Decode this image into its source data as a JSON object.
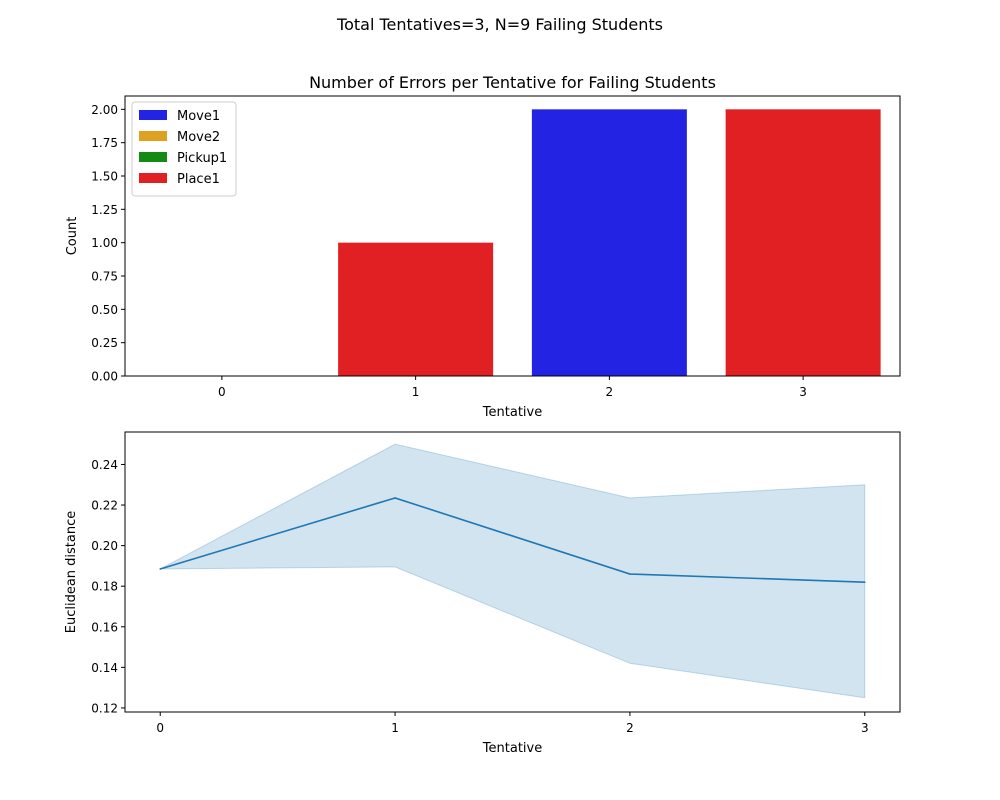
{
  "figure": {
    "suptitle": "Total Tentatives=3, N=9 Failing Students"
  },
  "chart_data": [
    {
      "type": "bar",
      "title": "Number of Errors per Tentative for Failing Students",
      "xlabel": "Tentative",
      "ylabel": "Count",
      "categories": [
        "0",
        "1",
        "2",
        "3"
      ],
      "ylim": [
        0,
        2.1
      ],
      "yticks": [
        0.0,
        0.25,
        0.5,
        0.75,
        1.0,
        1.25,
        1.5,
        1.75,
        2.0
      ],
      "ytick_labels": [
        "0.00",
        "0.25",
        "0.50",
        "0.75",
        "1.00",
        "1.25",
        "1.50",
        "1.75",
        "2.00"
      ],
      "legend_position": "top-left",
      "series": [
        {
          "name": "Move1",
          "color": "#2323e3",
          "values": [
            0,
            0,
            2,
            0
          ]
        },
        {
          "name": "Move2",
          "color": "#e0a020",
          "values": [
            0,
            0,
            0,
            0
          ]
        },
        {
          "name": "Pickup1",
          "color": "#138a13",
          "values": [
            0,
            0,
            0,
            0
          ]
        },
        {
          "name": "Place1",
          "color": "#e02023",
          "values": [
            0,
            1,
            0,
            2
          ]
        }
      ]
    },
    {
      "type": "line",
      "title": "",
      "xlabel": "Tentative",
      "ylabel": "Euclidean distance",
      "x": [
        0,
        1,
        2,
        3
      ],
      "xtick_labels": [
        "0",
        "1",
        "2",
        "3"
      ],
      "xlim": [
        -0.15,
        3.15
      ],
      "ylim": [
        0.118,
        0.256
      ],
      "yticks": [
        0.12,
        0.14,
        0.16,
        0.18,
        0.2,
        0.22,
        0.24
      ],
      "ytick_labels": [
        "0.12",
        "0.14",
        "0.16",
        "0.18",
        "0.20",
        "0.22",
        "0.24"
      ],
      "line_color": "#1f77b4",
      "band_color": "#1f77b4",
      "series": [
        {
          "values": [
            0.1885,
            0.2235,
            0.186,
            0.182
          ],
          "ci_upper": [
            0.1885,
            0.25,
            0.2235,
            0.23
          ],
          "ci_lower": [
            0.1885,
            0.1895,
            0.142,
            0.125
          ]
        }
      ]
    }
  ]
}
